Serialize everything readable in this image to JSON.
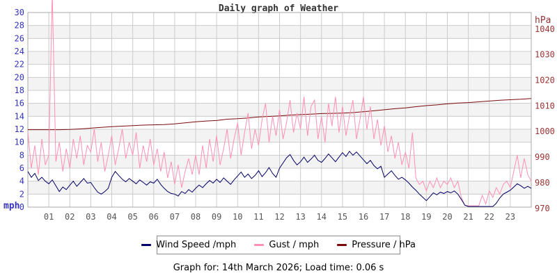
{
  "page_title": "Daily graph of Weather",
  "footer": {
    "text": "Graph for: 14th March 2026; Load time: 0.06 s"
  },
  "chart_data": {
    "type": "line",
    "title": "Daily graph of Weather",
    "x_axis": {
      "unit": "hours of day",
      "range": [
        0,
        24
      ],
      "tick_labels": [
        "01",
        "02",
        "03",
        "04",
        "05",
        "06",
        "07",
        "08",
        "09",
        "10",
        "11",
        "12",
        "13",
        "14",
        "15",
        "16",
        "17",
        "18",
        "19",
        "20",
        "21",
        "22",
        "23"
      ]
    },
    "left_axis": {
      "label": "mph",
      "min": 0,
      "max": 30,
      "ticks": [
        0,
        2,
        4,
        6,
        8,
        10,
        12,
        14,
        16,
        18,
        20,
        22,
        24,
        26,
        28,
        30
      ]
    },
    "right_axis": {
      "label": "hPa",
      "min": 970,
      "max": 1040,
      "ticks": [
        970,
        980,
        990,
        1000,
        1010,
        1020,
        1030,
        1040
      ]
    },
    "colors": {
      "band": "#f3f3f3",
      "grid": "#cccccc",
      "border": "#aaaaaa",
      "left_tick": "#3333bb",
      "right_tick": "#993333",
      "x_tick": "#555555",
      "title": "#333333"
    },
    "grid": true,
    "legend_position": "bottom",
    "series": [
      {
        "name": "Wind Speed /mph",
        "axis": "left",
        "color": "#000066",
        "interval_min": 10,
        "values": [
          5.5,
          4.6,
          5.2,
          4.1,
          4.6,
          4.0,
          3.6,
          4.2,
          3.3,
          2.4,
          3.1,
          2.7,
          3.4,
          4.0,
          3.2,
          3.8,
          4.4,
          3.7,
          3.8,
          3.0,
          2.3,
          2.0,
          2.4,
          2.9,
          4.6,
          5.5,
          4.9,
          4.3,
          3.9,
          4.4,
          4.0,
          3.6,
          4.2,
          3.8,
          3.4,
          3.9,
          3.7,
          4.3,
          3.5,
          2.9,
          2.4,
          2.1,
          2.0,
          1.7,
          2.4,
          2.1,
          2.7,
          2.3,
          2.9,
          3.4,
          3.0,
          3.6,
          4.1,
          3.7,
          4.3,
          3.8,
          4.5,
          4.0,
          3.5,
          4.2,
          4.8,
          5.4,
          4.6,
          5.1,
          4.4,
          4.9,
          5.6,
          4.7,
          5.3,
          6.1,
          5.2,
          4.6,
          6.0,
          6.8,
          7.6,
          8.1,
          7.2,
          6.5,
          7.0,
          7.7,
          6.9,
          7.4,
          8.0,
          7.2,
          6.9,
          7.5,
          8.2,
          7.6,
          7.0,
          7.7,
          8.4,
          7.8,
          8.6,
          8.0,
          8.5,
          7.9,
          7.3,
          6.7,
          7.2,
          6.4,
          5.9,
          6.3,
          4.6,
          5.1,
          5.6,
          4.9,
          4.3,
          4.6,
          4.2,
          3.7,
          3.1,
          2.6,
          2.0,
          1.5,
          1.0,
          1.6,
          2.2,
          1.9,
          2.3,
          2.1,
          2.4,
          2.2,
          2.5,
          2.0,
          1.2,
          0.3,
          0.1,
          0.1,
          0.1,
          0.1,
          0.1,
          0.1,
          0.1,
          0.1,
          0.6,
          1.4,
          2.0,
          2.3,
          2.6,
          3.1,
          3.6,
          3.3,
          2.9,
          3.2,
          2.9
        ]
      },
      {
        "name": "Gust / mph",
        "axis": "left",
        "color": "#ff8fb4",
        "interval_min": 10,
        "values": [
          11.5,
          6.0,
          9.5,
          5.0,
          10.5,
          6.5,
          8.0,
          33.0,
          7.0,
          10.0,
          5.5,
          9.0,
          6.0,
          10.5,
          7.5,
          11.0,
          6.5,
          9.5,
          8.5,
          12.0,
          7.0,
          10.0,
          5.5,
          8.0,
          11.0,
          6.5,
          9.0,
          12.0,
          7.5,
          10.0,
          8.0,
          11.5,
          6.0,
          9.5,
          7.0,
          10.5,
          6.5,
          9.0,
          5.5,
          8.5,
          4.5,
          7.0,
          3.5,
          6.5,
          3.0,
          5.5,
          7.5,
          5.0,
          8.0,
          5.0,
          9.5,
          6.0,
          10.5,
          7.0,
          11.0,
          6.5,
          9.0,
          12.0,
          7.5,
          10.5,
          13.0,
          8.0,
          11.5,
          14.5,
          9.0,
          12.0,
          9.5,
          13.5,
          16.0,
          10.0,
          14.0,
          11.0,
          15.0,
          10.5,
          13.0,
          16.5,
          11.5,
          14.5,
          12.0,
          17.0,
          11.0,
          15.5,
          16.5,
          10.5,
          14.0,
          10.0,
          16.0,
          12.5,
          17.0,
          11.5,
          15.5,
          11.0,
          14.0,
          16.5,
          10.5,
          13.5,
          17.0,
          12.0,
          15.5,
          10.5,
          13.5,
          9.5,
          12.5,
          8.5,
          11.0,
          7.5,
          10.0,
          6.5,
          8.5,
          6.0,
          11.5,
          4.5,
          3.5,
          4.0,
          2.5,
          4.0,
          3.0,
          4.5,
          3.0,
          4.0,
          3.5,
          4.5,
          3.0,
          4.0,
          1.5,
          0.3,
          0.2,
          0.2,
          0.2,
          0.2,
          1.8,
          0.5,
          2.5,
          1.5,
          3.0,
          2.0,
          3.5,
          4.0,
          3.0,
          5.5,
          8.0,
          4.5,
          7.5,
          5.0,
          4.0
        ]
      },
      {
        "name": "Pressure / hPa",
        "axis": "right",
        "color": "#7a0a0a",
        "interval_min": 30,
        "values": [
          1000.7,
          1000.7,
          1000.7,
          1000.7,
          1000.8,
          1001.0,
          1001.3,
          1001.6,
          1001.9,
          1002.1,
          1002.3,
          1002.5,
          1002.6,
          1002.7,
          1003.0,
          1003.4,
          1003.8,
          1004.1,
          1004.3,
          1004.8,
          1005.0,
          1005.3,
          1005.7,
          1005.9,
          1006.1,
          1006.4,
          1006.6,
          1006.8,
          1007.0,
          1007.1,
          1007.2,
          1007.4,
          1007.7,
          1008.1,
          1008.5,
          1008.9,
          1009.2,
          1009.7,
          1010.1,
          1010.4,
          1010.8,
          1011.1,
          1011.3,
          1011.6,
          1011.9,
          1012.2,
          1012.4,
          1012.6,
          1012.9
        ]
      }
    ]
  }
}
